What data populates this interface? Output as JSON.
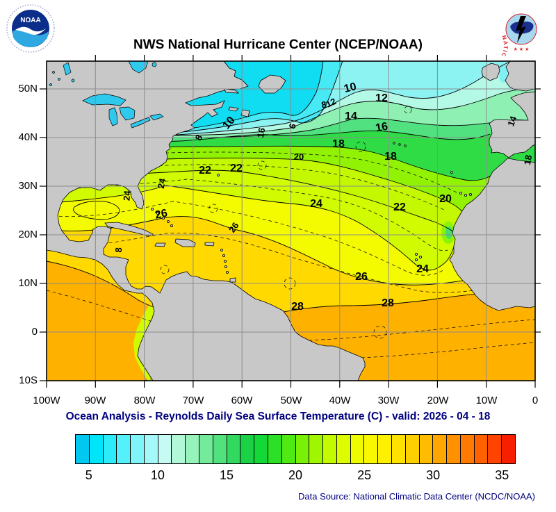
{
  "header": {
    "title": "NWS National Hurricane Center (NCEP/NOAA)",
    "noaa_logo": {
      "label": "NOAA"
    },
    "nws_logo": {
      "ring_text": "NATIONAL WEATHER SERVICE",
      "stars": "★ ★ ★"
    }
  },
  "axes": {
    "y_labels": [
      "50N",
      "40N",
      "30N",
      "20N",
      "10N",
      "0",
      "10S"
    ],
    "x_labels": [
      "100W",
      "90W",
      "80W",
      "70W",
      "60W",
      "50W",
      "40W",
      "30W",
      "20W",
      "10W",
      "0"
    ]
  },
  "caption": "Ocean Analysis - Reynolds Daily Sea Surface Temperature (C) - valid: 2026 - 04 - 18",
  "data_source": "Data Source: National Climatic Data Center (NCDC/NOAA)",
  "caption_color": "#000080",
  "colorbar": {
    "tick_labels": [
      "5",
      "10",
      "15",
      "20",
      "25",
      "30",
      "35"
    ],
    "value_range": [
      4,
      36
    ],
    "cell_colors": [
      "#00C8F0",
      "#00E6F8",
      "#2CECFA",
      "#55F1FA",
      "#7FF5FA",
      "#A5F8FA",
      "#C6FBF3",
      "#B2F8D8",
      "#96F3BA",
      "#74EB9B",
      "#52E27D",
      "#33D95F",
      "#1BD246",
      "#14D837",
      "#2BE026",
      "#4FE914",
      "#78F106",
      "#A0F600",
      "#C3FA00",
      "#DDFC00",
      "#EFFC00",
      "#F9F800",
      "#FDF000",
      "#FFE200",
      "#FFD000",
      "#FFBC00",
      "#FFA700",
      "#FF9100",
      "#FF7A00",
      "#FF6100",
      "#FF4300",
      "#F81E00"
    ]
  },
  "map": {
    "land_color": "#C8C8C8",
    "lake_color": "#2FC9EE",
    "grid_color": "#8C8C8C",
    "contour_labels": [
      {
        "v": "8"
      },
      {
        "v": "10"
      },
      {
        "v": "16"
      },
      {
        "v": "6"
      },
      {
        "v": "8"
      },
      {
        "v": "10"
      },
      {
        "v": "12"
      },
      {
        "v": "12"
      },
      {
        "v": "14"
      },
      {
        "v": "16"
      },
      {
        "v": "14"
      },
      {
        "v": "18"
      },
      {
        "v": "18"
      },
      {
        "v": "20"
      },
      {
        "v": "20"
      },
      {
        "v": "18"
      },
      {
        "v": "22"
      },
      {
        "v": "22"
      },
      {
        "v": "22"
      },
      {
        "v": "24"
      },
      {
        "v": "24"
      },
      {
        "v": "24"
      },
      {
        "v": "24"
      },
      {
        "v": "26"
      },
      {
        "v": "26"
      },
      {
        "v": "26"
      },
      {
        "v": "28"
      },
      {
        "v": "28"
      },
      {
        "v": "8"
      }
    ]
  },
  "chart_data": {
    "type": "contour_map",
    "variable": "Reynolds Daily Sea Surface Temperature (C)",
    "valid_date": "2026 - 04 - 18",
    "region": {
      "lon_range": [
        "100W",
        "0"
      ],
      "lat_range": [
        "10S",
        "55N"
      ]
    },
    "isotherms_c": [
      6,
      8,
      10,
      12,
      14,
      16,
      18,
      20,
      22,
      24,
      26,
      28
    ],
    "colorbar_ticks_c": [
      5,
      10,
      15,
      20,
      25,
      30,
      35
    ],
    "colorbar_span_c": [
      4,
      36
    ]
  }
}
